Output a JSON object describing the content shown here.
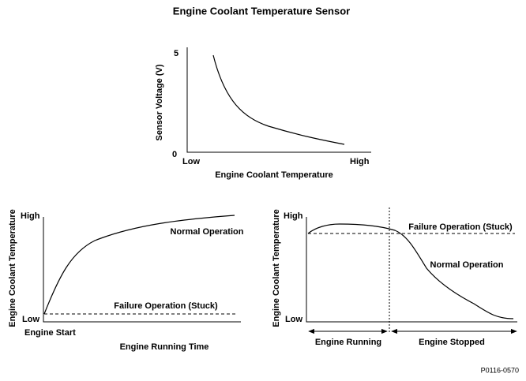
{
  "title": "Engine Coolant Temperature Sensor",
  "top_chart": {
    "y_label": "Sensor Voltage (V)",
    "y_tick_high": "5",
    "y_tick_low": "0",
    "x_tick_low": "Low",
    "x_tick_high": "High",
    "x_label": "Engine Coolant Temperature"
  },
  "left_chart": {
    "y_label": "Engine Coolant Temperature",
    "y_tick_high": "High",
    "y_tick_low": "Low",
    "x_start": "Engine Start",
    "x_label": "Engine Running Time",
    "normal_label": "Normal Operation",
    "failure_label": "Failure Operation (Stuck)"
  },
  "right_chart": {
    "y_label": "Engine Coolant Temperature",
    "y_tick_high": "High",
    "y_tick_low": "Low",
    "failure_label": "Failure Operation (Stuck)",
    "normal_label": "Normal Operation",
    "running_label": "Engine Running",
    "stopped_label": "Engine Stopped"
  },
  "figure_id": "P0116-0570"
}
